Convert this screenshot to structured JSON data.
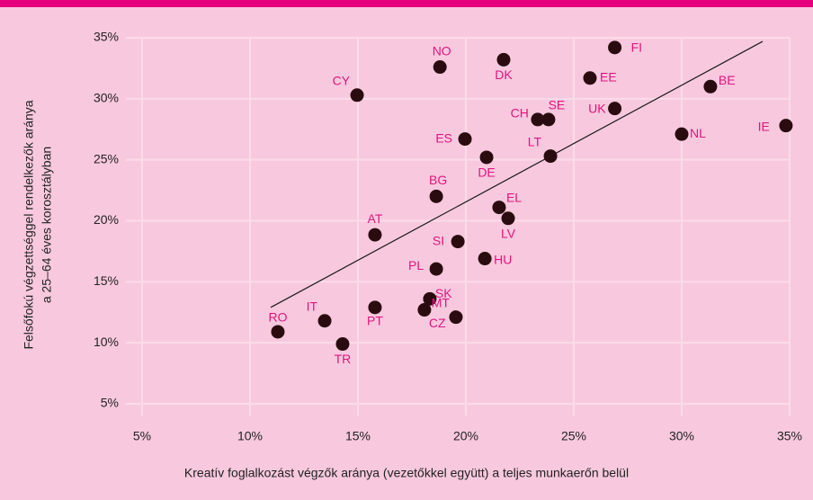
{
  "chart_data": {
    "type": "scatter",
    "xlabel": "Kreatív foglalkozást végzők aránya (vezetőkkel együtt) a teljes munkaerőn belül",
    "ylabel": [
      "Felsőfokú végzettséggel rendelkezők aránya",
      "a 25–64 éves korosztályban"
    ],
    "xlim": [
      5,
      35
    ],
    "ylim": [
      5,
      35
    ],
    "xticks": [
      {
        "value": 5,
        "label": "5%"
      },
      {
        "value": 10,
        "label": "10%"
      },
      {
        "value": 15,
        "label": "15%"
      },
      {
        "value": 20,
        "label": "20%"
      },
      {
        "value": 25,
        "label": "25%"
      },
      {
        "value": 30,
        "label": "30%"
      },
      {
        "value": 35,
        "label": "35%"
      }
    ],
    "yticks": [
      {
        "value": 5,
        "label": "5%"
      },
      {
        "value": 10,
        "label": "10%"
      },
      {
        "value": 15,
        "label": "15%"
      },
      {
        "value": 20,
        "label": "20%"
      },
      {
        "value": 25,
        "label": "25%"
      },
      {
        "value": 30,
        "label": "30%"
      },
      {
        "value": 35,
        "label": "35%"
      }
    ],
    "grid": true,
    "series": [
      {
        "color": "#2a0c10",
        "label_color": "#e0147f",
        "labels": [
          "FI",
          "DK",
          "NO",
          "EE",
          "CY",
          "BE",
          "UK",
          "CH",
          "SE",
          "NL",
          "IE",
          "ES",
          "DE",
          "LT",
          "BG",
          "EL",
          "LV",
          "AT",
          "SI",
          "HU",
          "PL",
          "SK",
          "PT",
          "CZ",
          "MT",
          "IT",
          "RO",
          "TR"
        ],
        "x": [
          26.9,
          21.75,
          18.8,
          25.75,
          14.96,
          31.33,
          26.9,
          23.33,
          23.83,
          30.0,
          34.83,
          19.96,
          20.96,
          23.92,
          18.63,
          21.54,
          21.96,
          15.79,
          19.63,
          20.88,
          18.63,
          18.33,
          15.79,
          18.08,
          19.54,
          13.46,
          11.29,
          14.29
        ],
        "values": [
          34.2,
          33.2,
          32.6,
          31.7,
          30.3,
          31.0,
          29.2,
          28.3,
          28.3,
          27.1,
          27.8,
          26.7,
          25.2,
          25.3,
          22.0,
          21.1,
          20.2,
          18.85,
          18.3,
          16.9,
          16.05,
          13.6,
          12.9,
          12.7,
          12.1,
          11.8,
          10.9,
          9.9
        ]
      }
    ],
    "trendline": {
      "x": [
        10.96,
        33.75
      ],
      "values": [
        12.9,
        34.7
      ],
      "color": "#1a1a1a"
    }
  }
}
